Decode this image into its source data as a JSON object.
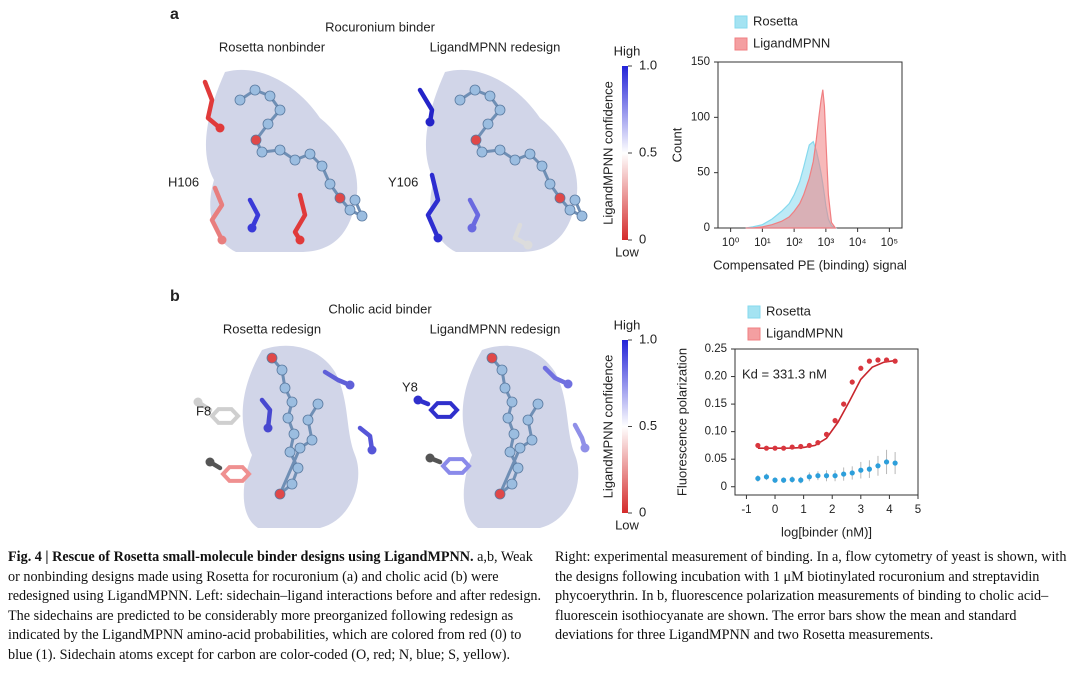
{
  "figure": {
    "panel_a": {
      "label": "a",
      "title": "Rocuronium binder",
      "left_label": "Rosetta nonbinder",
      "right_label": "LigandMPNN redesign",
      "left_residue": "H106",
      "right_residue": "Y106"
    },
    "panel_b": {
      "label": "b",
      "title": "Cholic acid binder",
      "left_label": "Rosetta redesign",
      "right_label": "LigandMPNN redesign",
      "left_residue": "F8",
      "right_residue": "Y8"
    },
    "colorbar": {
      "title": "LigandMPNN confidence",
      "high": "High",
      "low": "Low",
      "colors": [
        "#d42a2a",
        "#ffffff",
        "#2323d8"
      ],
      "lim": [
        0,
        1
      ],
      "ticks": [
        {
          "value": 1,
          "label": "1.0"
        },
        0.5,
        0
      ]
    }
  },
  "chart_data": [
    {
      "type": "area",
      "xlabel": "Compensated PE (binding) signal",
      "ylabel": "Count",
      "log_x": true,
      "xlim": [
        0.4,
        250000
      ],
      "xticks": [
        {
          "value": 1,
          "label": "10⁰"
        },
        {
          "value": 10,
          "label": "10¹"
        },
        {
          "value": 100,
          "label": "10²"
        },
        {
          "value": 1000,
          "label": "10³"
        },
        {
          "value": 10000,
          "label": "10⁴"
        },
        {
          "value": 100000,
          "label": "10⁵"
        }
      ],
      "ylim": [
        0,
        150
      ],
      "yticks": [
        0,
        50,
        100,
        150
      ],
      "x": [
        3,
        5,
        10,
        20,
        40,
        70,
        100,
        150,
        200,
        300,
        400,
        500,
        600,
        700,
        800,
        900,
        1000,
        1200,
        1500,
        2000
      ],
      "series": [
        {
          "name": "Rosetta",
          "color": "#86d9ee",
          "values": [
            0,
            1,
            3,
            8,
            15,
            22,
            30,
            42,
            55,
            75,
            78,
            70,
            60,
            50,
            40,
            30,
            20,
            8,
            2,
            0
          ]
        },
        {
          "name": "LigandMPNN",
          "color": "#f07f82",
          "values": [
            0,
            0,
            1,
            3,
            6,
            10,
            15,
            22,
            30,
            45,
            60,
            80,
            100,
            115,
            125,
            110,
            80,
            30,
            5,
            0
          ]
        }
      ]
    },
    {
      "type": "scatter",
      "xlabel": "log[binder (nM)]",
      "ylabel": "Fluorescence polarization",
      "annotation": "Kd = 331.3 nM",
      "xlim": [
        -1.4,
        5
      ],
      "xticks": [
        -1,
        0,
        1,
        2,
        3,
        4,
        5
      ],
      "ylim": [
        -0.015,
        0.25
      ],
      "yticks": [
        0,
        0.05,
        {
          "value": 0.1,
          "label": "0.10"
        },
        0.15,
        {
          "value": 0.2,
          "label": "0.20"
        },
        0.25
      ],
      "x": [
        -0.6,
        -0.3,
        0,
        0.3,
        0.6,
        0.9,
        1.2,
        1.5,
        1.8,
        2.1,
        2.4,
        2.7,
        3.0,
        3.3,
        3.6,
        3.9,
        4.2
      ],
      "series": [
        {
          "name": "Rosetta",
          "color": "#2d9fdb",
          "legend_color": "#86d9ee",
          "values": [
            0.015,
            0.018,
            0.012,
            0.012,
            0.013,
            0.012,
            0.018,
            0.02,
            0.02,
            0.02,
            0.023,
            0.025,
            0.03,
            0.032,
            0.038,
            0.045,
            0.043
          ],
          "errors": [
            0.006,
            0.006,
            0.005,
            0.005,
            0.006,
            0.006,
            0.008,
            0.008,
            0.01,
            0.01,
            0.012,
            0.012,
            0.015,
            0.016,
            0.018,
            0.022,
            0.02
          ]
        },
        {
          "name": "LigandMPNN",
          "color": "#d9363e",
          "legend_color": "#f07f82",
          "values": [
            0.075,
            0.07,
            0.07,
            0.07,
            0.072,
            0.073,
            0.075,
            0.08,
            0.095,
            0.12,
            0.15,
            0.19,
            0.215,
            0.228,
            0.23,
            0.23,
            0.228
          ],
          "errors": [
            0.004,
            0.003,
            0.003,
            0.003,
            0.003,
            0.003,
            0.003,
            0.004,
            0.004,
            0.005,
            0.005,
            0.005,
            0.004,
            0.003,
            0.003,
            0.003,
            0.003
          ]
        }
      ],
      "fit": {
        "color": "#c8262d",
        "x": [
          -0.6,
          -0.2,
          0.2,
          0.6,
          1.0,
          1.4,
          1.8,
          2.2,
          2.6,
          3.0,
          3.4,
          3.8,
          4.2
        ],
        "values": [
          0.07,
          0.07,
          0.07,
          0.0702,
          0.0713,
          0.075,
          0.088,
          0.117,
          0.155,
          0.195,
          0.217,
          0.226,
          0.229
        ]
      }
    }
  ],
  "caption": {
    "title": "Fig. 4 | Rescue of Rosetta small-molecule binder designs using LigandMPNN.",
    "left_body": "a,b, Weak or nonbinding designs made using Rosetta for rocuronium (a) and cholic acid (b) were redesigned using LigandMPNN. Left: sidechain–ligand interactions before and after redesign. The sidechains are predicted to be considerably more preorganized following redesign as indicated by the LigandMPNN amino-acid probabilities, which are colored from red (0) to blue (1). Sidechain atoms except for carbon are color-coded (O, red; N, blue; S, yellow).",
    "right_body": "Right: experimental measurement of binding. In a, flow cytometry of yeast is shown, with the designs following incubation with 1 μM biotinylated rocuronium and streptavidin phycoerythrin. In b, fluorescence polarization measurements of binding to cholic acid–fluorescein isothiocyanate are shown. The error bars show the mean and standard deviations for three LigandMPNN and two Rosetta measurements."
  }
}
